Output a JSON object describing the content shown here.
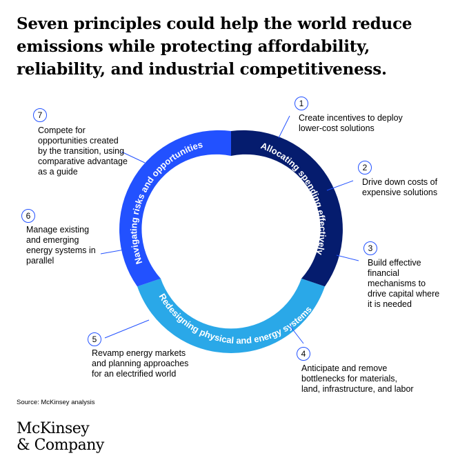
{
  "title": "Seven principles could help the world reduce\nemissions while protecting affordability,\nreliability, and industrial competitiveness.",
  "ring": {
    "segments": [
      {
        "label": "Allocating spending effectively",
        "color": "#051c6e"
      },
      {
        "label": "Redesigning physical and energy systems",
        "color": "#2aa8e8"
      },
      {
        "label": "Navigating risks and opportunities",
        "color": "#2251ff"
      }
    ]
  },
  "principles": [
    {
      "number": "1",
      "text": "Create incentives to deploy\nlower-cost solutions"
    },
    {
      "number": "2",
      "text": "Drive down costs of\nexpensive solutions"
    },
    {
      "number": "3",
      "text": "Build effective\nfinancial\nmechanisms to\ndrive capital where\nit is needed"
    },
    {
      "number": "4",
      "text": "Anticipate and remove\nbottlenecks for materials,\nland, infrastructure, and labor"
    },
    {
      "number": "5",
      "text": "Revamp energy markets\nand planning approaches\nfor an electrified world"
    },
    {
      "number": "6",
      "text": "Manage existing\nand emerging\nenergy systems in\nparallel"
    },
    {
      "number": "7",
      "text": "Compete for\nopportunities created\nby the transition, using\ncomparative advantage\nas a guide"
    }
  ],
  "source": "Source: McKinsey analysis",
  "logo": "McKinsey\n& Company",
  "colors": {
    "accent": "#2251ff",
    "dark_navy": "#051c6e",
    "light_blue": "#2aa8e8"
  }
}
